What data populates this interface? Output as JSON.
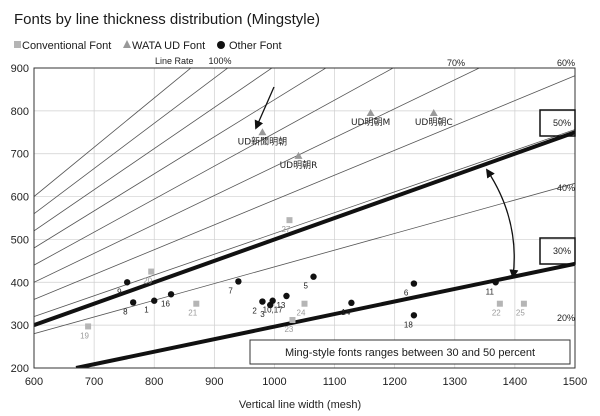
{
  "chart_data": {
    "type": "scatter",
    "title": "Fonts by line thickness distribution (Mingstyle)",
    "xlabel": "Vertical line width (mesh)",
    "ylabel": "",
    "xlim": [
      600,
      1500
    ],
    "ylim": [
      200,
      900
    ],
    "xticks": [
      600,
      700,
      800,
      900,
      1000,
      1100,
      1200,
      1300,
      1400,
      1500
    ],
    "yticks": [
      200,
      300,
      400,
      500,
      600,
      700,
      800,
      900
    ],
    "grid": true,
    "legend_position": "top-left",
    "legend": [
      {
        "name": "Conventional Font",
        "marker": "square",
        "color": "#b5b5b5"
      },
      {
        "name": "WATA UD Font",
        "marker": "triangle",
        "color": "#999999"
      },
      {
        "name": "Other Font",
        "marker": "circle",
        "color": "#111111"
      }
    ],
    "rate_axis_label": "Line Rate",
    "rate_lines": [
      {
        "label": "100%",
        "rate": 1.0
      },
      {
        "label": "",
        "rate": 0.9
      },
      {
        "label": "",
        "rate": 0.8
      },
      {
        "label": "70%",
        "rate": 0.7
      },
      {
        "label": "60%",
        "rate": 0.6
      },
      {
        "label": "50%",
        "rate": 0.5
      },
      {
        "label": "40%",
        "rate": 0.4
      },
      {
        "label": "30%",
        "rate": 0.3
      },
      {
        "label": "20%",
        "rate": 0.2
      }
    ],
    "bold_lines": [
      {
        "x": [
          600,
          1500
        ],
        "y": [
          300,
          750
        ]
      },
      {
        "x": [
          670,
          1500
        ],
        "y": [
          200,
          443
        ]
      }
    ],
    "annotation_text": "Ming-style fonts ranges between 30 and 50 percent",
    "ud_labels": [
      {
        "text": "UD新聞明朝",
        "x": 980,
        "y": 750
      },
      {
        "text": "UD明朝M",
        "x": 1160,
        "y": 795
      },
      {
        "text": "UD明朝R",
        "x": 1040,
        "y": 695
      },
      {
        "text": "UD明朝C",
        "x": 1265,
        "y": 795
      }
    ],
    "series": [
      {
        "name": "Conventional Font",
        "marker": "square",
        "points": [
          {
            "x": 690,
            "y": 297,
            "label": "19"
          },
          {
            "x": 795,
            "y": 425,
            "label": "20"
          },
          {
            "x": 870,
            "y": 350,
            "label": "21"
          },
          {
            "x": 1025,
            "y": 545,
            "label": "27"
          },
          {
            "x": 1030,
            "y": 312,
            "label": "23"
          },
          {
            "x": 1050,
            "y": 350,
            "label": "24"
          },
          {
            "x": 1375,
            "y": 350,
            "label": "22"
          },
          {
            "x": 1415,
            "y": 350,
            "label": "25"
          }
        ]
      },
      {
        "name": "WATA UD Font",
        "marker": "triangle",
        "points": [
          {
            "x": 980,
            "y": 750,
            "label": ""
          },
          {
            "x": 1040,
            "y": 695,
            "label": ""
          },
          {
            "x": 1160,
            "y": 795,
            "label": ""
          },
          {
            "x": 1265,
            "y": 795,
            "label": ""
          }
        ]
      },
      {
        "name": "Other Font",
        "marker": "circle",
        "points": [
          {
            "x": 755,
            "y": 400,
            "label": "9"
          },
          {
            "x": 765,
            "y": 353,
            "label": "8"
          },
          {
            "x": 800,
            "y": 357,
            "label": "1"
          },
          {
            "x": 828,
            "y": 372,
            "label": "16"
          },
          {
            "x": 940,
            "y": 402,
            "label": "7"
          },
          {
            "x": 980,
            "y": 355,
            "label": "2"
          },
          {
            "x": 993,
            "y": 347,
            "label": "3"
          },
          {
            "x": 997,
            "y": 357,
            "label": "10,17"
          },
          {
            "x": 1020,
            "y": 368,
            "label": "13"
          },
          {
            "x": 1065,
            "y": 413,
            "label": "5"
          },
          {
            "x": 1128,
            "y": 352,
            "label": "14"
          },
          {
            "x": 1232,
            "y": 397,
            "label": "6"
          },
          {
            "x": 1232,
            "y": 323,
            "label": "18"
          },
          {
            "x": 1368,
            "y": 400,
            "label": "11"
          }
        ]
      }
    ]
  },
  "colors": {
    "conventional": "#b5b5b5",
    "ud": "#999999",
    "other": "#111111",
    "grid": "#cfcfcf",
    "rate_line": "#555555",
    "bold_line": "#111111"
  }
}
